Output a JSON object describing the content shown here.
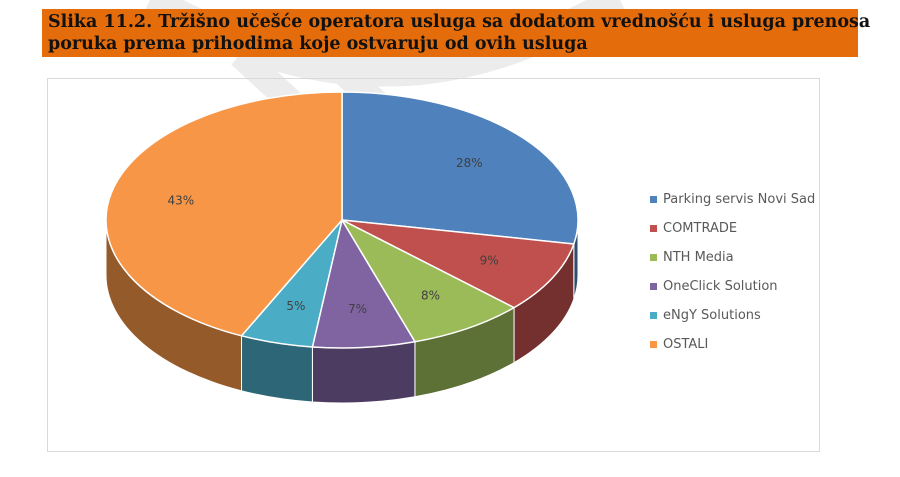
{
  "caption": {
    "line1": "Slika 11.2. Tržišno učešće operatora usluga sa dodatom vrednošću i usluga prenosa",
    "line2": "poruka prema prihodima koje ostvaruju od ovih usluga",
    "background": "#e46c0a"
  },
  "chart_data": {
    "type": "pie",
    "style": "3d",
    "title": "",
    "legend_position": "right",
    "labels": [
      "Parking servis Novi Sad",
      "COMTRADE",
      "NTH Media",
      "OneClick Solution",
      "eNgY Solutions",
      "OSTALI"
    ],
    "values": [
      28,
      9,
      8,
      7,
      5,
      43
    ],
    "value_labels": [
      "28%",
      "9%",
      "8%",
      "7%",
      "5%",
      "43%"
    ],
    "colors": [
      "#4f81bd",
      "#c0504d",
      "#9bbb59",
      "#8064a2",
      "#4bacc6",
      "#f79646"
    ]
  }
}
